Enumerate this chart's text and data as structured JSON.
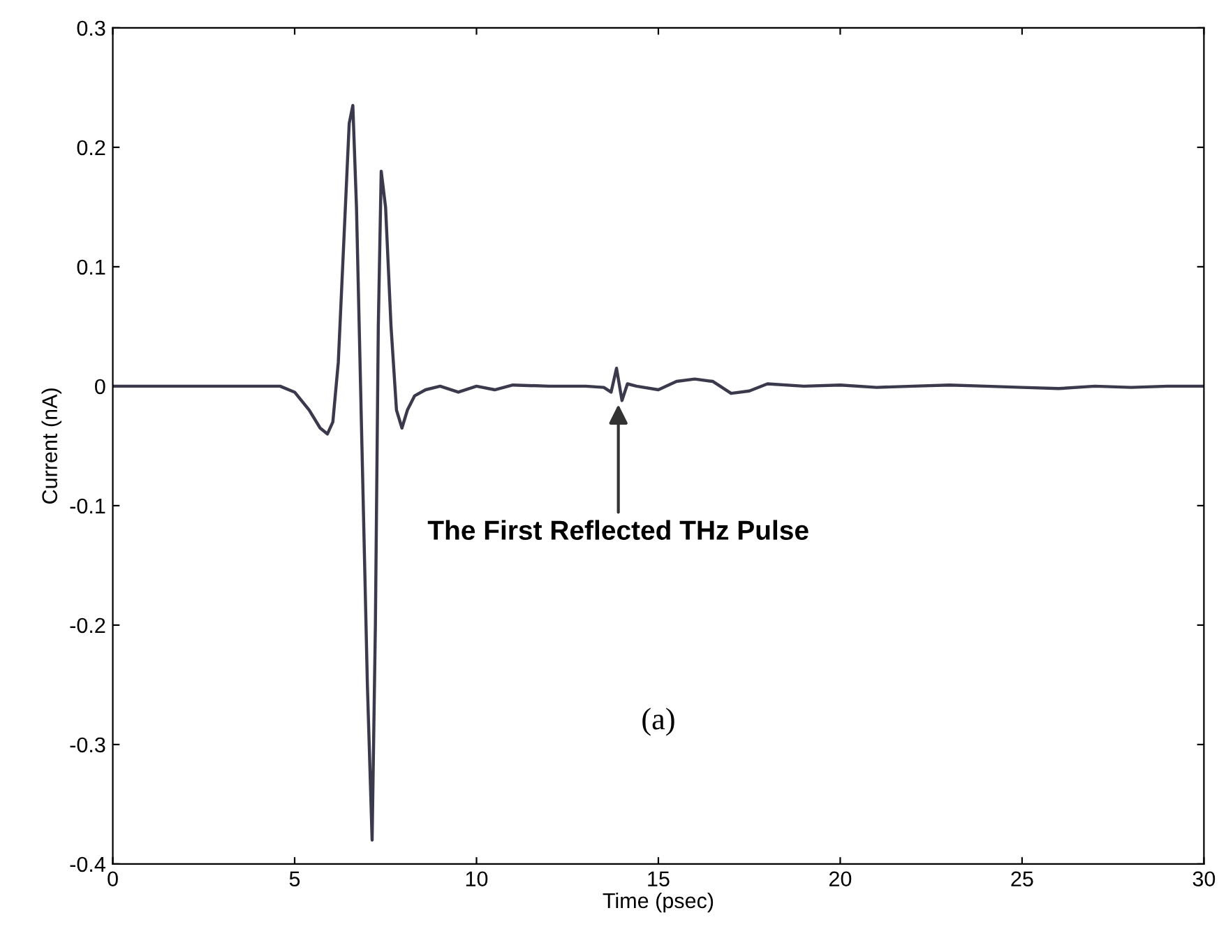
{
  "chart_data": {
    "type": "line",
    "xlabel": "Time (psec)",
    "ylabel": "Current (nA)",
    "xlim": [
      0,
      30
    ],
    "ylim": [
      -0.4,
      0.3
    ],
    "xticks": [
      0,
      5,
      10,
      15,
      20,
      25,
      30
    ],
    "yticks": [
      -0.4,
      -0.3,
      -0.2,
      -0.1,
      0,
      0.1,
      0.2,
      0.3
    ],
    "grid": false,
    "legend": false,
    "marker": "none",
    "line_style": "solid",
    "series": [
      {
        "color": "#3b3a4c",
        "x": [
          0,
          2,
          4,
          4.6,
          5.0,
          5.4,
          5.7,
          5.9,
          6.05,
          6.2,
          6.35,
          6.5,
          6.6,
          6.7,
          6.85,
          7.0,
          7.13,
          7.22,
          7.3,
          7.38,
          7.5,
          7.65,
          7.8,
          7.95,
          8.1,
          8.3,
          8.6,
          9.0,
          9.5,
          10,
          10.5,
          11,
          12,
          13,
          13.5,
          13.7,
          13.85,
          14.0,
          14.15,
          14.4,
          15,
          15.5,
          16,
          16.5,
          17,
          17.5,
          18,
          19,
          20,
          21,
          22,
          23,
          24,
          25,
          26,
          27,
          28,
          29,
          30
        ],
        "values": [
          0,
          0,
          0,
          0,
          -0.005,
          -0.02,
          -0.035,
          -0.04,
          -0.03,
          0.02,
          0.12,
          0.22,
          0.235,
          0.15,
          -0.05,
          -0.25,
          -0.38,
          -0.2,
          0.05,
          0.18,
          0.15,
          0.05,
          -0.02,
          -0.035,
          -0.02,
          -0.008,
          -0.003,
          0,
          -0.005,
          0,
          -0.003,
          0.001,
          0,
          0,
          -0.001,
          -0.005,
          0.015,
          -0.012,
          0.002,
          0,
          -0.003,
          0.004,
          0.006,
          0.004,
          -0.006,
          -0.004,
          0.002,
          0,
          0.001,
          -0.001,
          0,
          0.001,
          0,
          -0.001,
          -0.002,
          0,
          -0.001,
          0,
          0
        ]
      }
    ],
    "annotations": [
      {
        "text": "The First Reflected THz Pulse",
        "x": 13.9,
        "y": -0.012
      },
      "(a)"
    ]
  }
}
